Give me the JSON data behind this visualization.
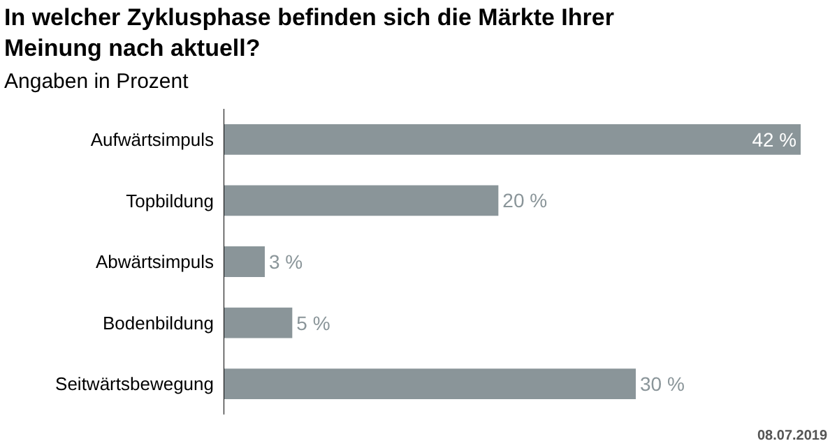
{
  "chart_data": {
    "type": "bar",
    "orientation": "horizontal",
    "title": "In welcher Zyklusphase befinden sich die Märkte Ihrer Meinung nach aktuell?",
    "subtitle": "Angaben in Prozent",
    "categories": [
      "Aufwärtsimpuls",
      "Topbildung",
      "Abwärtsimpuls",
      "Bodenbildung",
      "Seitwärtsbewegung"
    ],
    "values": [
      42,
      20,
      3,
      5,
      30
    ],
    "value_labels": [
      "42 %",
      "20 %",
      "3 %",
      "5 %",
      "30 %"
    ],
    "color": "#8a9599",
    "annotations": [
      "08.07.2019"
    ]
  }
}
